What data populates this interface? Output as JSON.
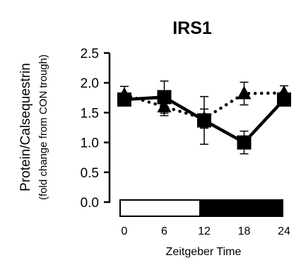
{
  "chart_data": {
    "type": "line",
    "title": "IRS1",
    "xlabel": "Zeitgeber Time",
    "ylabel": "Protein/Calsequestrin",
    "ylabel_sub": "(fold change from CON trough)",
    "xlim": [
      0,
      24
    ],
    "ylim": [
      0,
      2.5
    ],
    "x_ticks": [
      "0",
      "6",
      "12",
      "18",
      "24"
    ],
    "y_ticks": [
      "0.0",
      "0.5",
      "1.0",
      "1.5",
      "2.0",
      "2.5"
    ],
    "grid": false,
    "light_dark_bar": [
      {
        "phase": "light",
        "from": 0,
        "to": 12
      },
      {
        "phase": "dark",
        "from": 12,
        "to": 24
      }
    ],
    "series": [
      {
        "marker": "square",
        "line": "solid",
        "x": [
          0,
          6,
          12,
          18,
          24
        ],
        "values": [
          1.72,
          1.76,
          1.37,
          1.0,
          1.72
        ],
        "error": [
          0.1,
          0.27,
          0.4,
          0.19,
          0.1
        ]
      },
      {
        "marker": "triangle",
        "line": "dotted",
        "x": [
          0,
          6,
          12,
          18,
          24
        ],
        "values": [
          1.8,
          1.6,
          1.4,
          1.82,
          1.83
        ],
        "error": [
          0.14,
          0.15,
          0.16,
          0.19,
          0.12
        ]
      }
    ]
  }
}
